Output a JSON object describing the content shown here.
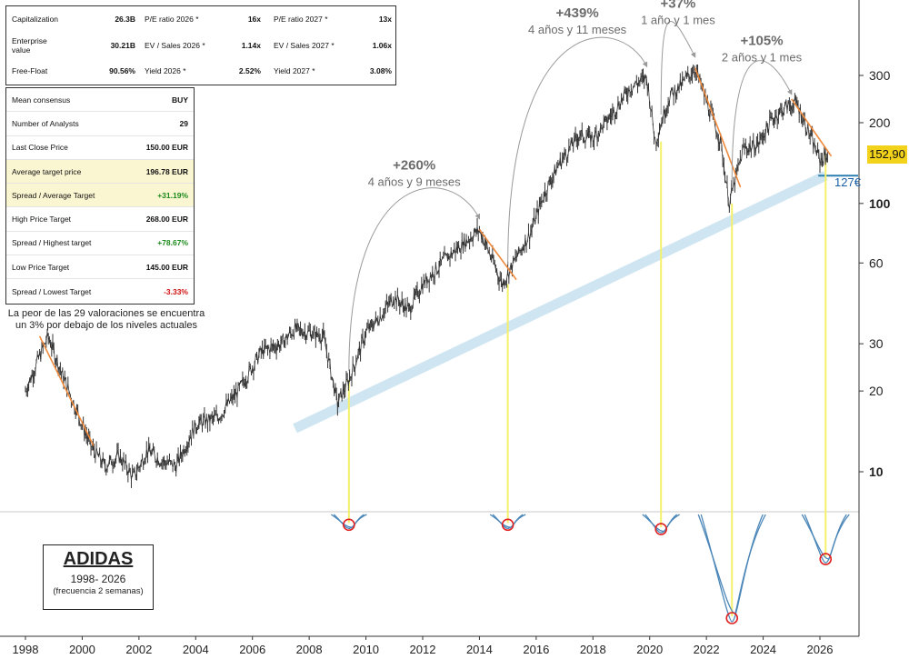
{
  "metrics": [
    [
      {
        "label": "Capitalization",
        "value": "26.3B"
      },
      {
        "label": "P/E ratio 2026 *",
        "value": "16x"
      },
      {
        "label": "P/E ratio 2027 *",
        "value": "13x"
      }
    ],
    [
      {
        "label": "Enterprise value",
        "value": "30.21B"
      },
      {
        "label": "EV / Sales 2026 *",
        "value": "1.14x"
      },
      {
        "label": "EV / Sales 2027 *",
        "value": "1.06x"
      }
    ],
    [
      {
        "label": "Free-Float",
        "value": "90.56%"
      },
      {
        "label": "Yield 2026 *",
        "value": "2.52%"
      },
      {
        "label": "Yield 2027 *",
        "value": "3.08%"
      }
    ]
  ],
  "consensus": [
    {
      "label": "Mean consensus",
      "value": "BUY",
      "highlight": false,
      "tone": ""
    },
    {
      "label": "Number of Analysts",
      "value": "29",
      "highlight": false,
      "tone": ""
    },
    {
      "label": "Last Close Price",
      "value": "150.00 EUR",
      "highlight": false,
      "tone": ""
    },
    {
      "label": "Average target price",
      "value": "196.78 EUR",
      "highlight": true,
      "tone": ""
    },
    {
      "label": "Spread / Average Target",
      "value": "+31.19%",
      "highlight": true,
      "tone": "pos"
    },
    {
      "label": "High Price Target",
      "value": "268.00 EUR",
      "highlight": false,
      "tone": ""
    },
    {
      "label": "Spread / Highest target",
      "value": "+78.67%",
      "highlight": false,
      "tone": "pos"
    },
    {
      "label": "Low Price Target",
      "value": "145.00 EUR",
      "highlight": false,
      "tone": ""
    },
    {
      "label": "Spread / Lowest Target",
      "value": "-3.33%",
      "highlight": false,
      "tone": "neg"
    }
  ],
  "note": {
    "line1": "La peor de las 29 valoraciones se encuentra",
    "line2": "un 3% por debajo de los niveles actuales"
  },
  "title": {
    "main": "ADIDAS",
    "years": "1998- 2026",
    "frequency": "(frecuencia 2 semanas)"
  },
  "last_price_label": "152,90",
  "support_label": "127€",
  "colors": {
    "price": "#333333",
    "trend_down": "#f08a3c",
    "support": "#cfe6f2",
    "yellow_line": "#f5f06a",
    "oscillator": "#4a86b8",
    "circle": "#e02020",
    "arrow": "#9a9a9a",
    "gain_text": "#6b6b6b",
    "last_price_bg": "#f2d21b"
  },
  "chart_data": {
    "type": "line",
    "y_scale": "log",
    "y_ticks": [
      10,
      20,
      30,
      60,
      100,
      200,
      300
    ],
    "x_ticks": [
      1998,
      2000,
      2002,
      2004,
      2006,
      2008,
      2010,
      2012,
      2014,
      2016,
      2018,
      2020,
      2022,
      2024,
      2026
    ],
    "price_path": [
      {
        "year": 1998.0,
        "value": 20
      },
      {
        "year": 1998.5,
        "value": 27
      },
      {
        "year": 1998.8,
        "value": 32
      },
      {
        "year": 1999.3,
        "value": 23
      },
      {
        "year": 1999.8,
        "value": 17
      },
      {
        "year": 2000.3,
        "value": 12.5
      },
      {
        "year": 2000.8,
        "value": 10.5
      },
      {
        "year": 2001.3,
        "value": 11.5
      },
      {
        "year": 2001.8,
        "value": 9.5
      },
      {
        "year": 2002.3,
        "value": 12
      },
      {
        "year": 2002.8,
        "value": 11
      },
      {
        "year": 2003.3,
        "value": 10.5
      },
      {
        "year": 2004.0,
        "value": 15
      },
      {
        "year": 2004.8,
        "value": 16
      },
      {
        "year": 2005.5,
        "value": 20
      },
      {
        "year": 2006.3,
        "value": 28
      },
      {
        "year": 2007.0,
        "value": 30
      },
      {
        "year": 2007.5,
        "value": 34
      },
      {
        "year": 2008.0,
        "value": 33
      },
      {
        "year": 2008.5,
        "value": 32
      },
      {
        "year": 2009.0,
        "value": 18
      },
      {
        "year": 2009.4,
        "value": 22
      },
      {
        "year": 2010.0,
        "value": 33
      },
      {
        "year": 2010.5,
        "value": 38
      },
      {
        "year": 2011.0,
        "value": 45
      },
      {
        "year": 2011.5,
        "value": 40
      },
      {
        "year": 2012.0,
        "value": 50
      },
      {
        "year": 2012.8,
        "value": 62
      },
      {
        "year": 2013.5,
        "value": 72
      },
      {
        "year": 2014.0,
        "value": 80
      },
      {
        "year": 2014.5,
        "value": 60
      },
      {
        "year": 2014.8,
        "value": 50
      },
      {
        "year": 2015.2,
        "value": 60
      },
      {
        "year": 2015.8,
        "value": 78
      },
      {
        "year": 2016.3,
        "value": 110
      },
      {
        "year": 2016.8,
        "value": 140
      },
      {
        "year": 2017.5,
        "value": 180
      },
      {
        "year": 2018.0,
        "value": 175
      },
      {
        "year": 2018.6,
        "value": 210
      },
      {
        "year": 2019.3,
        "value": 270
      },
      {
        "year": 2019.9,
        "value": 295
      },
      {
        "year": 2020.2,
        "value": 170
      },
      {
        "year": 2020.7,
        "value": 250
      },
      {
        "year": 2021.1,
        "value": 275
      },
      {
        "year": 2021.6,
        "value": 320
      },
      {
        "year": 2022.0,
        "value": 240
      },
      {
        "year": 2022.5,
        "value": 170
      },
      {
        "year": 2022.8,
        "value": 100
      },
      {
        "year": 2023.3,
        "value": 160
      },
      {
        "year": 2023.8,
        "value": 165
      },
      {
        "year": 2024.3,
        "value": 205
      },
      {
        "year": 2024.8,
        "value": 230
      },
      {
        "year": 2025.2,
        "value": 235
      },
      {
        "year": 2025.6,
        "value": 185
      },
      {
        "year": 2026.0,
        "value": 145
      },
      {
        "year": 2026.3,
        "value": 152.9
      }
    ],
    "support_line": [
      {
        "year": 2007.5,
        "value": 14.5
      },
      {
        "year": 2026.2,
        "value": 127
      }
    ],
    "downtrends": [
      [
        {
          "year": 1998.5,
          "value": 32
        },
        {
          "year": 2000.4,
          "value": 12.5
        }
      ],
      [
        {
          "year": 2014.0,
          "value": 80
        },
        {
          "year": 2015.3,
          "value": 52
        }
      ],
      [
        {
          "year": 2021.6,
          "value": 320
        },
        {
          "year": 2023.2,
          "value": 115
        }
      ],
      [
        {
          "year": 2025.0,
          "value": 245
        },
        {
          "year": 2026.4,
          "value": 150
        }
      ]
    ],
    "cycle_lows": [
      2009.4,
      2015.0,
      2020.4,
      2022.9,
      2026.2
    ],
    "oscillator_dips": [
      {
        "year": 2009.4,
        "depth": 0.13
      },
      {
        "year": 2015.0,
        "depth": 0.13
      },
      {
        "year": 2020.4,
        "depth": 0.17
      },
      {
        "year": 2022.9,
        "depth": 1.0
      },
      {
        "year": 2026.2,
        "depth": 0.45
      }
    ],
    "gains": [
      {
        "pct": "+260%",
        "period": "4 años y 9 meses",
        "from_year": 2009.4,
        "to_year": 2014.0
      },
      {
        "pct": "+439%",
        "period": "4 años y 11 meses",
        "from_year": 2015.0,
        "to_year": 2019.9
      },
      {
        "pct": "+37%",
        "period": "1 año y 1 mes",
        "from_year": 2020.4,
        "to_year": 2021.6
      },
      {
        "pct": "+105%",
        "period": "2 años y 1 mes",
        "from_year": 2022.9,
        "to_year": 2025.0
      }
    ],
    "last_price": 152.9,
    "support_level": 127
  }
}
